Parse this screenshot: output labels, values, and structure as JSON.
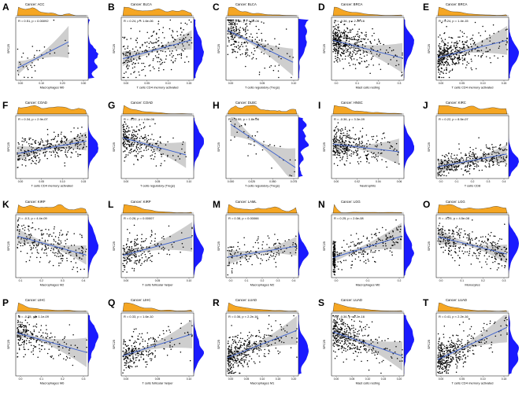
{
  "colors": {
    "density_fill": "#f5a623",
    "density_fill_y": "#1a1aff",
    "regression_line": "#3a5fcd",
    "confidence_band": "#bdbdbd",
    "points": "#000000",
    "panel_border": "#000000"
  },
  "chart_data": [
    {
      "type": "scatter",
      "letter": "A",
      "title": "Cancer: ACC",
      "stat": "R = 0.51, p = 0.00092",
      "xlabel": "Macrophages M0",
      "ylabel": "SPC25",
      "xlim": [
        0,
        0.3
      ],
      "ylim": [
        0,
        8
      ],
      "xticks": [
        "0.00",
        "0.10",
        "0.20",
        "0.30"
      ],
      "n": 38,
      "slope": 0.7,
      "spread": 0.16,
      "shape": "exp"
    },
    {
      "type": "scatter",
      "letter": "B",
      "title": "Cancer: BLCA",
      "stat": "R = 0.24, p = 1.6e-06",
      "xlabel": "T cells CD4 memory activated",
      "ylabel": "SPC25",
      "xlim": [
        0,
        0.2
      ],
      "ylim": [
        0,
        8
      ],
      "xticks": [
        "0.00",
        "0.05",
        "0.10",
        "0.15"
      ],
      "n": 260,
      "slope": 0.35,
      "spread": 0.2,
      "shape": "unif"
    },
    {
      "type": "scatter",
      "letter": "C",
      "title": "Cancer: BLCA",
      "stat": "R = -0.26, p = 1.3e-06",
      "xlabel": "T cells regulatory (Tregs)",
      "ylabel": "SPC25",
      "xlim": [
        0,
        0.15
      ],
      "ylim": [
        0,
        8
      ],
      "xticks": [
        "0.00",
        "0.05",
        "0.10"
      ],
      "n": 240,
      "slope": -0.55,
      "spread": 0.2,
      "shape": "exp"
    },
    {
      "type": "scatter",
      "letter": "D",
      "title": "Cancer: BRCA",
      "stat": "R = -0.36, p < 2.2e-16",
      "xlabel": "Mast cells resting",
      "ylabel": "SPC25",
      "xlim": [
        0,
        0.3
      ],
      "ylim": [
        0,
        8
      ],
      "xticks": [
        "0.0",
        "0.1",
        "0.2",
        "0.3"
      ],
      "n": 420,
      "slope": -0.3,
      "spread": 0.16,
      "shape": "exp"
    },
    {
      "type": "scatter",
      "letter": "E",
      "title": "Cancer: BRCA",
      "stat": "R = 0.24, p = 1.4e-15",
      "xlabel": "T cells CD4 memory activated",
      "ylabel": "SPC25",
      "xlim": [
        0,
        0.2
      ],
      "ylim": [
        0,
        8
      ],
      "xticks": [
        "0.00",
        "0.05",
        "0.10",
        "0.15"
      ],
      "n": 420,
      "slope": 0.3,
      "spread": 0.17,
      "shape": "exp"
    },
    {
      "type": "scatter",
      "letter": "F",
      "title": "Cancer: COAD",
      "stat": "R = 0.34, p = 2.9e-07",
      "xlabel": "T cells CD4 memory activated",
      "ylabel": "SPC25",
      "xlim": [
        0,
        0.2
      ],
      "ylim": [
        0,
        8
      ],
      "xticks": [
        "0.00",
        "0.05",
        "0.10",
        "0.15"
      ],
      "n": 300,
      "slope": 0.2,
      "spread": 0.12,
      "shape": "unif"
    },
    {
      "type": "scatter",
      "letter": "G",
      "title": "Cancer: COAD",
      "stat": "R = -0.22, p = 4.6e-06",
      "xlabel": "T cells regulatory (Tregs)",
      "ylabel": "SPC25",
      "xlim": [
        0,
        0.15
      ],
      "ylim": [
        0,
        8
      ],
      "xticks": [
        "0.00",
        "0.05",
        "0.10"
      ],
      "n": 260,
      "slope": -0.3,
      "spread": 0.16,
      "shape": "exp"
    },
    {
      "type": "scatter",
      "letter": "H",
      "title": "Cancer: DLBC",
      "stat": "R = -0.55, p = 1.8e-06",
      "xlabel": "T cells regulatory (Tregs)",
      "ylabel": "SPC25",
      "xlim": [
        0,
        0.08
      ],
      "ylim": [
        0,
        8
      ],
      "xticks": [
        "0.000",
        "0.025",
        "0.050",
        "0.075"
      ],
      "n": 40,
      "slope": -0.75,
      "spread": 0.14,
      "shape": "unif"
    },
    {
      "type": "scatter",
      "letter": "I",
      "title": "Cancer: HNSC",
      "stat": "R = -0.36, p = 3.3e-09",
      "xlabel": "Neutrophils",
      "ylabel": "SPC25",
      "xlim": [
        0,
        0.06
      ],
      "ylim": [
        0,
        8
      ],
      "xticks": [
        "0.00",
        "0.02",
        "0.04",
        "0.06"
      ],
      "n": 320,
      "slope": -0.15,
      "spread": 0.14,
      "shape": "exp"
    },
    {
      "type": "scatter",
      "letter": "J",
      "title": "Cancer: KIRC",
      "stat": "R = 0.22, p = 8.5e-07",
      "xlabel": "T cells CD8",
      "ylabel": "SPC25",
      "xlim": [
        0,
        0.5
      ],
      "ylim": [
        0,
        8
      ],
      "xticks": [
        "0.0",
        "0.1",
        "0.2",
        "0.3",
        "0.4"
      ],
      "n": 340,
      "slope": 0.2,
      "spread": 0.1,
      "shape": "unif",
      "ybase": 0.18
    },
    {
      "type": "scatter",
      "letter": "K",
      "title": "Cancer: KIRP",
      "stat": "R = -0.3, p = 4.4e-09",
      "xlabel": "Macrophages M2",
      "ylabel": "SPC25",
      "xlim": [
        0,
        0.4
      ],
      "ylim": [
        0,
        8
      ],
      "xticks": [
        "0.1",
        "0.2",
        "0.3",
        "0.4"
      ],
      "n": 240,
      "slope": -0.3,
      "spread": 0.15,
      "shape": "unif"
    },
    {
      "type": "scatter",
      "letter": "L",
      "title": "Cancer: KIRP",
      "stat": "R = 0.26, p = 0.00007",
      "xlabel": "T cells follicular helper",
      "ylabel": "SPC25",
      "xlim": [
        0,
        0.15
      ],
      "ylim": [
        0,
        8
      ],
      "xticks": [
        "0.00",
        "0.05",
        "0.10"
      ],
      "n": 200,
      "slope": 0.3,
      "spread": 0.14,
      "shape": "exp"
    },
    {
      "type": "scatter",
      "letter": "M",
      "title": "Cancer: LAML",
      "stat": "R = 0.38, p = 0.00066",
      "xlabel": "Macrophages M2",
      "ylabel": "SPC25",
      "xlim": [
        0,
        0.5
      ],
      "ylim": [
        0,
        8
      ],
      "xticks": [
        "0.0",
        "0.1",
        "0.2",
        "0.3",
        "0.4"
      ],
      "n": 140,
      "slope": 0.25,
      "spread": 0.12,
      "shape": "unif",
      "ybase": 0.3
    },
    {
      "type": "scatter",
      "letter": "N",
      "title": "Cancer: LGG",
      "stat": "R = 0.25, p = 2.6e-08",
      "xlabel": "Macrophages M0",
      "ylabel": "SPC25",
      "xlim": [
        0,
        0.2
      ],
      "ylim": [
        0,
        8
      ],
      "xticks": [
        "0.0",
        "0.1",
        "0.2"
      ],
      "n": 320,
      "slope": 0.35,
      "spread": 0.12,
      "shape": "wall"
    },
    {
      "type": "scatter",
      "letter": "O",
      "title": "Cancer: LGG",
      "stat": "R = -0.25, p = 4.5e-08",
      "xlabel": "Monocytes",
      "ylabel": "SPC25",
      "xlim": [
        0,
        0.3
      ],
      "ylim": [
        0,
        8
      ],
      "xticks": [
        "0.0",
        "0.1",
        "0.2",
        "0.3"
      ],
      "n": 320,
      "slope": -0.3,
      "spread": 0.15,
      "shape": "unif"
    },
    {
      "type": "scatter",
      "letter": "P",
      "title": "Cancer: LIHC",
      "stat": "R = -0.35, p = 1.1e-09",
      "xlabel": "Macrophages M0",
      "ylabel": "SPC25",
      "xlim": [
        0,
        0.4
      ],
      "ylim": [
        0,
        8
      ],
      "xticks": [
        "0.0",
        "0.1",
        "0.2",
        "0.3"
      ],
      "n": 230,
      "slope": -0.35,
      "spread": 0.15,
      "shape": "exp"
    },
    {
      "type": "scatter",
      "letter": "Q",
      "title": "Cancer: LIHC",
      "stat": "R = 0.33, p = 1.6e-10",
      "xlabel": "T cells follicular helper",
      "ylabel": "SPC25",
      "xlim": [
        0,
        0.15
      ],
      "ylim": [
        0,
        8
      ],
      "xticks": [
        "0.00",
        "0.05",
        "0.10"
      ],
      "n": 230,
      "slope": 0.4,
      "spread": 0.15,
      "shape": "exp"
    },
    {
      "type": "scatter",
      "letter": "R",
      "title": "Cancer: LUAD",
      "stat": "R = 0.36, p < 2.2e-16",
      "xlabel": "Macrophages M1",
      "ylabel": "SPC25",
      "xlim": [
        0,
        0.25
      ],
      "ylim": [
        0,
        8
      ],
      "xticks": [
        "0.00",
        "0.05",
        "0.10",
        "0.15",
        "0.20"
      ],
      "n": 380,
      "slope": 0.45,
      "spread": 0.16,
      "shape": "exp"
    },
    {
      "type": "scatter",
      "letter": "S",
      "title": "Cancer: LUAD",
      "stat": "R = -0.36, p < 2.2e-16",
      "xlabel": "Mast cells resting",
      "ylabel": "SPC25",
      "xlim": [
        0,
        0.25
      ],
      "ylim": [
        0,
        8
      ],
      "xticks": [
        "0.00",
        "0.05",
        "0.10",
        "0.15",
        "0.20"
      ],
      "n": 380,
      "slope": -0.45,
      "spread": 0.16,
      "shape": "exp"
    },
    {
      "type": "scatter",
      "letter": "T",
      "title": "Cancer: LUAD",
      "stat": "R = 0.41, p < 2.2e-16",
      "xlabel": "T cells CD4 memory activated",
      "ylabel": "SPC25",
      "xlim": [
        0,
        0.15
      ],
      "ylim": [
        0,
        8
      ],
      "xticks": [
        "0.00",
        "0.05",
        "0.10",
        "0.15"
      ],
      "n": 380,
      "slope": 0.5,
      "spread": 0.16,
      "shape": "exp"
    }
  ]
}
